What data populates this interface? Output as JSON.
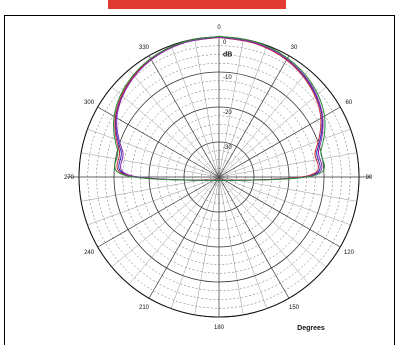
{
  "chart_data": {
    "type": "polar-line",
    "title": "",
    "angle_unit_label": "Degrees",
    "radial_unit_label": "dB",
    "angle_ticks": [
      "0",
      "30",
      "60",
      "90",
      "120",
      "150",
      "180",
      "210",
      "240",
      "270",
      "300",
      "330"
    ],
    "radial_ticks": [
      "0",
      "-10",
      "-20",
      "-30"
    ],
    "rlim": [
      -40,
      0
    ],
    "grid": true,
    "series": [
      {
        "color": "#2d2db8",
        "points": [
          [
            0,
            -0.1
          ],
          [
            15,
            -0.4
          ],
          [
            30,
            -1.2
          ],
          [
            45,
            -3
          ],
          [
            60,
            -6
          ],
          [
            75,
            -11
          ],
          [
            90,
            -16
          ],
          [
            270,
            -16.5
          ],
          [
            285,
            -11
          ],
          [
            300,
            -6
          ],
          [
            315,
            -3
          ],
          [
            330,
            -1.2
          ],
          [
            345,
            -0.3
          ],
          [
            360,
            -0.1
          ]
        ]
      },
      {
        "color": "#c2273a",
        "points": [
          [
            0,
            -0.1
          ],
          [
            15,
            -0.5
          ],
          [
            30,
            -1.4
          ],
          [
            45,
            -3.3
          ],
          [
            60,
            -6.4
          ],
          [
            75,
            -11.5
          ],
          [
            90,
            -16.5
          ],
          [
            270,
            -16
          ],
          [
            285,
            -10.5
          ],
          [
            300,
            -5.8
          ],
          [
            315,
            -2.9
          ],
          [
            330,
            -1.1
          ],
          [
            345,
            -0.3
          ],
          [
            360,
            -0.1
          ]
        ]
      },
      {
        "color": "#8a2bb0",
        "points": [
          [
            0,
            0
          ],
          [
            15,
            -0.3
          ],
          [
            30,
            -1.1
          ],
          [
            45,
            -2.8
          ],
          [
            60,
            -5.8
          ],
          [
            75,
            -10.5
          ],
          [
            90,
            -15.5
          ],
          [
            270,
            -17
          ],
          [
            285,
            -11.5
          ],
          [
            300,
            -6.3
          ],
          [
            315,
            -3.2
          ],
          [
            330,
            -1.3
          ],
          [
            345,
            -0.4
          ],
          [
            360,
            0
          ]
        ]
      },
      {
        "color": "#2e8b3a",
        "points": [
          [
            0,
            0.2
          ],
          [
            15,
            0
          ],
          [
            30,
            -0.8
          ],
          [
            45,
            -2.4
          ],
          [
            60,
            -5.2
          ],
          [
            75,
            -9.8
          ],
          [
            90,
            -15
          ],
          [
            270,
            -15.5
          ],
          [
            285,
            -10
          ],
          [
            300,
            -5.4
          ],
          [
            315,
            -2.6
          ],
          [
            330,
            -0.9
          ],
          [
            345,
            -0.1
          ],
          [
            360,
            0.2
          ]
        ]
      }
    ]
  }
}
